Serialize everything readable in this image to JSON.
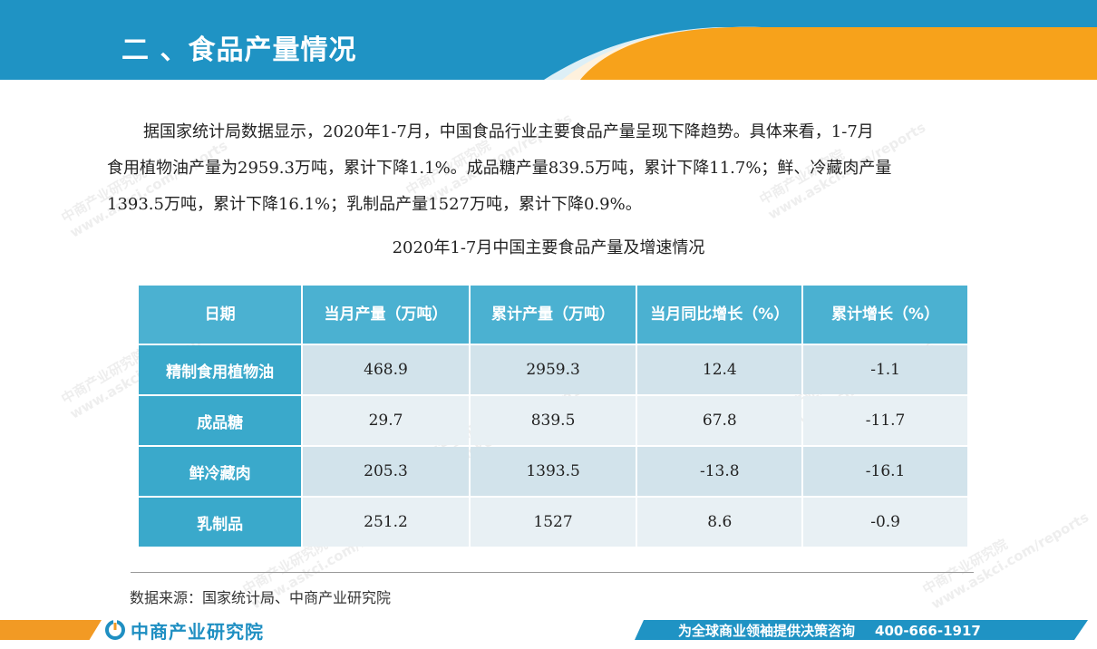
{
  "header": {
    "title": "二 、食品产量情况",
    "colors": {
      "band": "#1f93c4",
      "accent": "#f7a21b"
    }
  },
  "intro": {
    "lines": [
      "据国家统计局数据显示，2020年1-7月，中国食品行业主要食品产量呈现下降趋势。具体来看，1-7月",
      "食用植物油产量为2959.3万吨，累计下降1.1%。成品糖产量839.5万吨，累计下降11.7%；鲜、冷藏肉产量",
      "1393.5万吨，累计下降16.1%；乳制品产量1527万吨，累计下降0.9%。"
    ]
  },
  "table": {
    "title": "2020年1-7月中国主要食品产量及增速情况",
    "columns": [
      "日期",
      "当月产量（万吨）",
      "累计产量（万吨）",
      "当月同比增长（%）",
      "累计增长（%）"
    ],
    "rows": [
      {
        "name": "精制食用植物油",
        "monthly": "468.9",
        "cumulative": "2959.3",
        "monthly_yoy": "12.4",
        "cumulative_growth": "-1.1"
      },
      {
        "name": "成品糖",
        "monthly": "29.7",
        "cumulative": "839.5",
        "monthly_yoy": "67.8",
        "cumulative_growth": "-11.7"
      },
      {
        "name": "鲜冷藏肉",
        "monthly": "205.3",
        "cumulative": "1393.5",
        "monthly_yoy": "-13.8",
        "cumulative_growth": "-16.1"
      },
      {
        "name": "乳制品",
        "monthly": "251.2",
        "cumulative": "1527",
        "monthly_yoy": "8.6",
        "cumulative_growth": "-0.9"
      }
    ]
  },
  "source": "数据来源：国家统计局、中商产业研究院",
  "footer": {
    "logo_text": "中商产业研究院",
    "slogan": "为全球商业领袖提供决策咨询",
    "phone": "400-666-1917"
  },
  "watermark": {
    "text": "中商产业研究院",
    "subtext": "www.askci.com/reports"
  }
}
